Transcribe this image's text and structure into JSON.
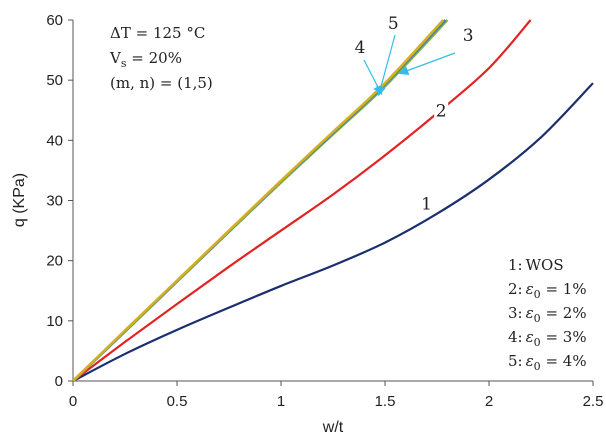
{
  "chart_data": {
    "type": "line",
    "xlabel": "w/t",
    "ylabel": "q (KPa)",
    "xlim": [
      0,
      2.5
    ],
    "ylim": [
      0,
      60
    ],
    "x_ticks": [
      "0",
      "0.5",
      "1",
      "1.5",
      "2",
      "2.5"
    ],
    "y_ticks": [
      "0",
      "10",
      "20",
      "30",
      "40",
      "50",
      "60"
    ],
    "grid": false,
    "legend_placement": "bottom-right",
    "annotation": {
      "line1": "ΔT = 125 °C",
      "line2": "V",
      "line2_sub": "s",
      "line2_rest": " = 20%",
      "line3": "(m, n) = (1,5)"
    },
    "legend_text": [
      {
        "num": "1:",
        "text": "WOS",
        "eps": false
      },
      {
        "num": "2:",
        "text": " = 1%",
        "eps": true
      },
      {
        "num": "3:",
        "text": " = 2%",
        "eps": true
      },
      {
        "num": "4:",
        "text": " = 3%",
        "eps": true
      },
      {
        "num": "5:",
        "text": " = 4%",
        "eps": true
      }
    ],
    "series": [
      {
        "label": "1",
        "color": "#1b2f6e",
        "x": [
          0,
          0.25,
          0.5,
          0.75,
          1.0,
          1.25,
          1.5,
          1.75,
          2.0,
          2.25,
          2.5
        ],
        "y": [
          0,
          4.5,
          8.5,
          12.2,
          15.8,
          19.2,
          23.0,
          27.8,
          33.5,
          40.5,
          49.5
        ]
      },
      {
        "label": "2",
        "color": "#e32222",
        "x": [
          0,
          0.25,
          0.5,
          0.75,
          1.0,
          1.25,
          1.5,
          1.75,
          2.0,
          2.2
        ],
        "y": [
          0,
          6.5,
          12.8,
          19.0,
          25.0,
          31.0,
          37.5,
          44.5,
          52.0,
          60.0
        ]
      },
      {
        "label": "3",
        "color": "#7fb542",
        "x": [
          0,
          0.25,
          0.5,
          0.75,
          1.0,
          1.25,
          1.5,
          1.8
        ],
        "y": [
          0,
          8.2,
          16.5,
          24.8,
          33.0,
          41.0,
          49.0,
          60.0
        ]
      },
      {
        "label": "4",
        "color": "#4a7abf",
        "x": [
          0,
          0.25,
          0.5,
          0.75,
          1.0,
          1.25,
          1.5,
          1.79
        ],
        "y": [
          0,
          8.3,
          16.6,
          24.9,
          33.2,
          41.2,
          49.3,
          60.0
        ]
      },
      {
        "label": "5",
        "color": "#d4b021",
        "x": [
          0,
          0.25,
          0.5,
          0.75,
          1.0,
          1.25,
          1.5,
          1.78
        ],
        "y": [
          0,
          8.4,
          16.7,
          25.0,
          33.3,
          41.4,
          49.5,
          60.0
        ]
      }
    ],
    "curve_labels": [
      {
        "text": "1",
        "x": 1.7,
        "y": 28.5
      },
      {
        "text": "2",
        "x": 1.77,
        "y": 44.0
      },
      {
        "text": "3",
        "x": 1.9,
        "y": 56.5
      },
      {
        "text": "4",
        "x": 1.38,
        "y": 54.5
      },
      {
        "text": "5",
        "x": 1.54,
        "y": 58.5
      }
    ]
  }
}
